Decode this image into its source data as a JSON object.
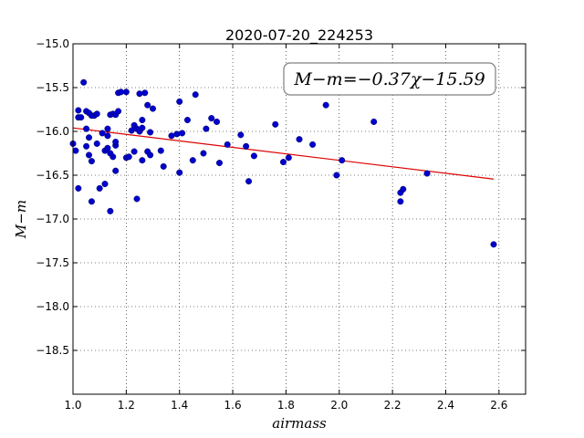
{
  "chart_data": {
    "type": "scatter",
    "title": "2020-07-20_224253",
    "xlabel": "airmass",
    "ylabel": "M−m",
    "xlim": [
      1.0,
      2.7
    ],
    "ylim": [
      -19.0,
      -15.0
    ],
    "y_inverted": true,
    "grid": true,
    "xticks": [
      "1.0",
      "1.2",
      "1.4",
      "1.6",
      "1.8",
      "2.0",
      "2.2",
      "2.4",
      "2.6"
    ],
    "yticks": [
      "−15.0",
      "−15.5",
      "−16.0",
      "−16.5",
      "−17.0",
      "−17.5",
      "−18.0",
      "−18.5"
    ],
    "annotation": "M−m=−0.37χ−15.59",
    "point_color": "#0000cc",
    "fit_color": "#dd0000",
    "fit": {
      "slope": -0.37,
      "intercept": -15.59,
      "x_range": [
        1.0,
        2.58
      ]
    },
    "points": {
      "x": [
        1.0,
        1.01,
        1.02,
        1.02,
        1.02,
        1.03,
        1.04,
        1.05,
        1.05,
        1.05,
        1.06,
        1.06,
        1.06,
        1.07,
        1.07,
        1.07,
        1.08,
        1.09,
        1.09,
        1.1,
        1.11,
        1.12,
        1.12,
        1.13,
        1.13,
        1.13,
        1.14,
        1.14,
        1.14,
        1.15,
        1.15,
        1.16,
        1.16,
        1.16,
        1.16,
        1.17,
        1.17,
        1.18,
        1.2,
        1.2,
        1.21,
        1.22,
        1.23,
        1.23,
        1.24,
        1.24,
        1.25,
        1.25,
        1.26,
        1.26,
        1.26,
        1.27,
        1.28,
        1.28,
        1.29,
        1.29,
        1.3,
        1.33,
        1.34,
        1.37,
        1.39,
        1.4,
        1.4,
        1.41,
        1.43,
        1.45,
        1.46,
        1.49,
        1.5,
        1.52,
        1.54,
        1.55,
        1.58,
        1.63,
        1.65,
        1.66,
        1.68,
        1.76,
        1.79,
        1.81,
        1.85,
        1.9,
        1.95,
        1.99,
        2.01,
        2.13,
        2.23,
        2.23,
        2.24,
        2.33,
        2.58
      ],
      "y": [
        -16.14,
        -16.22,
        -15.84,
        -15.76,
        -16.65,
        -15.84,
        -15.44,
        -15.97,
        -15.77,
        -16.17,
        -15.79,
        -16.07,
        -16.27,
        -15.82,
        -16.34,
        -16.8,
        -15.82,
        -16.14,
        -15.8,
        -16.65,
        -16.02,
        -16.6,
        -16.22,
        -16.05,
        -16.19,
        -15.97,
        -16.25,
        -15.81,
        -16.91,
        -15.8,
        -16.29,
        -16.45,
        -16.16,
        -16.12,
        -15.81,
        -15.56,
        -15.77,
        -15.55,
        -16.3,
        -15.55,
        -16.29,
        -15.99,
        -15.93,
        -16.23,
        -15.97,
        -16.77,
        -16.0,
        -15.57,
        -15.87,
        -15.96,
        -16.33,
        -15.56,
        -15.7,
        -16.23,
        -16.27,
        -16.01,
        -15.74,
        -16.22,
        -16.4,
        -16.05,
        -16.03,
        -15.66,
        -16.47,
        -16.02,
        -15.87,
        -16.33,
        -15.58,
        -16.25,
        -15.97,
        -15.85,
        -15.89,
        -16.36,
        -16.15,
        -16.04,
        -16.17,
        -16.57,
        -16.28,
        -15.92,
        -16.35,
        -16.3,
        -16.09,
        -16.15,
        -15.7,
        -16.5,
        -16.33,
        -15.89,
        -16.8,
        -16.7,
        -16.66,
        -16.48,
        -17.29
      ]
    }
  }
}
